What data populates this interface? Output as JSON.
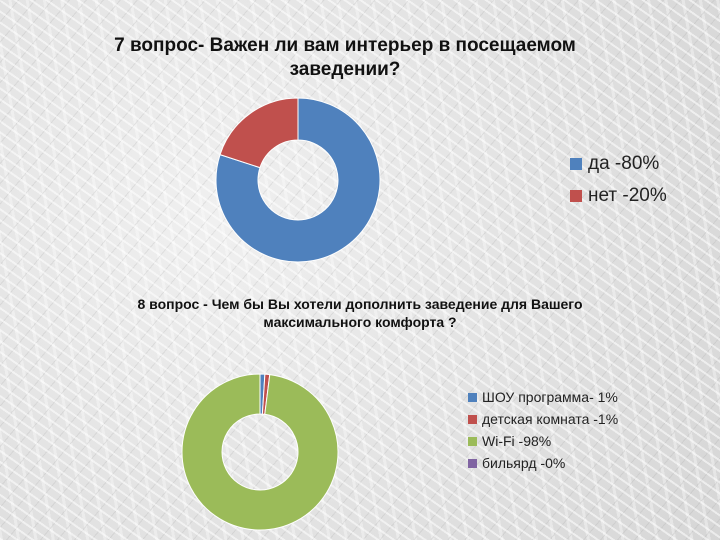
{
  "chart_data": [
    {
      "type": "pie",
      "title": "7 вопрос- Важен ли вам интерьер в посещаемом заведении?",
      "donut": true,
      "legend_position": "right",
      "series": [
        {
          "label": "да -80%",
          "value": 80,
          "color": "#4f81bd"
        },
        {
          "label": "нет -20%",
          "value": 20,
          "color": "#c0504d"
        }
      ]
    },
    {
      "type": "pie",
      "title": "8 вопрос - Чем бы Вы хотели дополнить заведение для Вашего максимального комфорта ?",
      "donut": true,
      "legend_position": "right",
      "series": [
        {
          "label": "ШОУ программа- 1%",
          "value": 1,
          "color": "#4f81bd"
        },
        {
          "label": "детская комната -1%",
          "value": 1,
          "color": "#c0504d"
        },
        {
          "label": "Wi-Fi -98%",
          "value": 98,
          "color": "#9bbb59"
        },
        {
          "label": "бильярд -0%",
          "value": 0,
          "color": "#8064a2"
        }
      ]
    }
  ]
}
